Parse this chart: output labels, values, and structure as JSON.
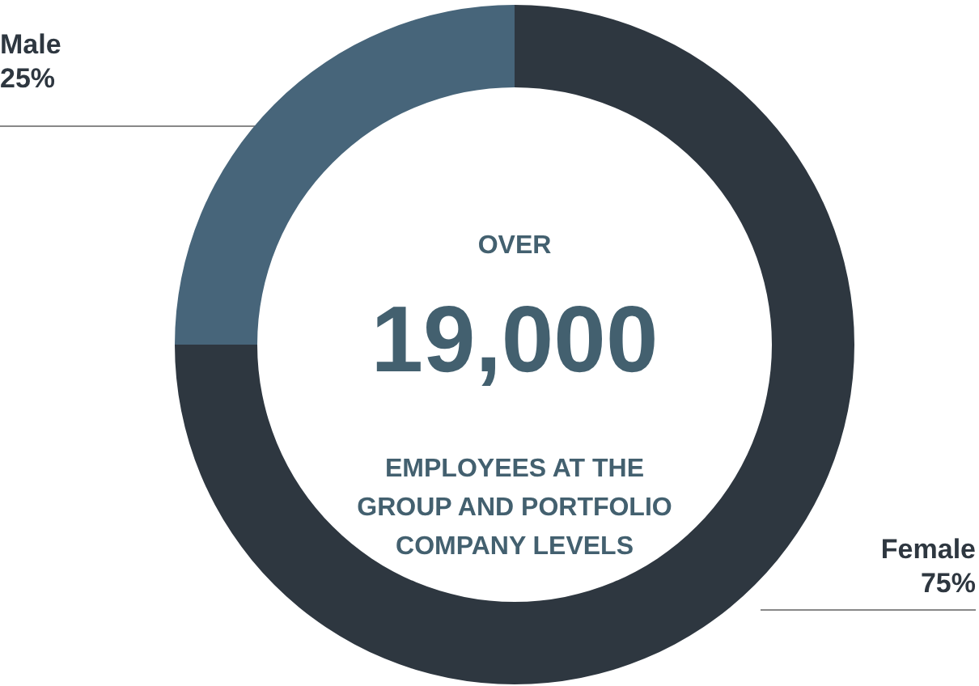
{
  "chart_data": {
    "type": "donut",
    "categories": [
      "Male",
      "Female"
    ],
    "values": [
      25,
      75
    ],
    "value_labels": [
      "25%",
      "75%"
    ],
    "colors": [
      "#47657a",
      "#2e3740"
    ],
    "annotations": [
      "OVER",
      "19,000",
      "EMPLOYEES AT THE\nGROUP AND PORTFOLIO\nCOMPANY LEVELS"
    ],
    "legend": false
  }
}
